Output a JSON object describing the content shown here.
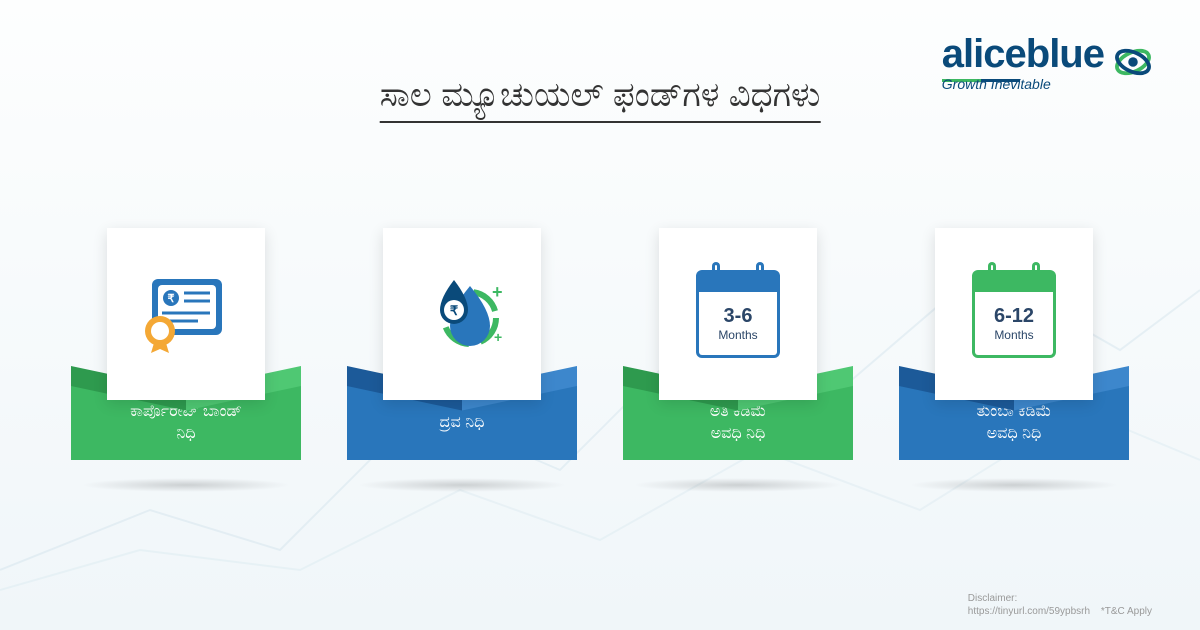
{
  "colors": {
    "blue_dark": "#1c5a99",
    "blue_mid": "#2976bb",
    "blue_light": "#3d87cc",
    "green_dark": "#2e9a4e",
    "green_mid": "#3db862",
    "green_light": "#4fc873",
    "text": "#333333",
    "logo_blue": "#0a4a7a",
    "logo_green": "#3db862"
  },
  "logo": {
    "word": "aliceblue",
    "tag": "Growth Inevitable"
  },
  "title": "ಸಾಲ ಮ್ಯೂಚುಯಲ್ ಫಂಡ್‌ಗಳ ವಿಧಗಳು",
  "cards": [
    {
      "label": "ಕಾರ್ಪೊರೇಟ್ ಬಾಂಡ್\nನಿಧಿ",
      "box": "green",
      "icon": "bond"
    },
    {
      "label": "ದ್ರವ ನಿಧಿ",
      "box": "blue",
      "icon": "drop"
    },
    {
      "label": "ಅತಿ ಕಡಿಮೆ\nಅವಧಿ ನಿಧಿ",
      "box": "green",
      "icon": "cal",
      "cal": {
        "range": "3-6",
        "months": "Months",
        "color": "blue"
      }
    },
    {
      "label": "ತುಂಬಾ ಕಡಿಮೆ\nಅವಧಿ ನಿಧಿ",
      "box": "blue",
      "icon": "cal",
      "cal": {
        "range": "6-12",
        "months": "Months",
        "color": "green"
      }
    }
  ],
  "disclaimer": {
    "label": "Disclaimer:",
    "url": "https://tinyurl.com/59ypbsrh",
    "tc": "*T&C Apply"
  }
}
